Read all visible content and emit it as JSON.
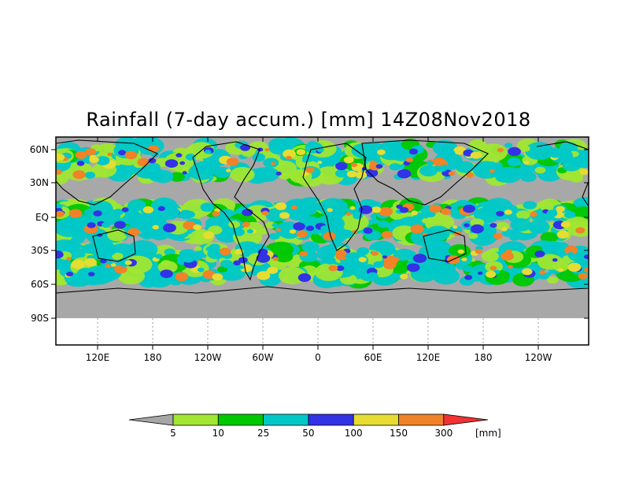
{
  "title": "Rainfall (7-day accum.) [mm] 14Z08Nov2018",
  "map": {
    "ocean_color": "#a8a8a8",
    "y_ticks": [
      "60N",
      "30N",
      "EQ",
      "30S",
      "60S",
      "90S"
    ],
    "x_ticks": [
      "120E",
      "180",
      "120W",
      "60W",
      "0",
      "60E",
      "120E",
      "180",
      "120W"
    ]
  },
  "legend": {
    "unit": "[mm]",
    "labels": [
      "5",
      "10",
      "25",
      "50",
      "100",
      "150",
      "300"
    ],
    "colors": [
      "#a6a6a6",
      "#a0e632",
      "#00c800",
      "#00c8c8",
      "#3232e6",
      "#e6dc32",
      "#f08228",
      "#f03232"
    ]
  }
}
